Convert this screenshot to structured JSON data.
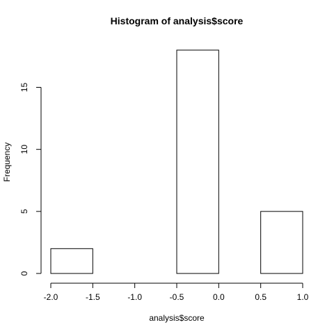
{
  "chart_data": {
    "type": "bar",
    "title": "Histogram of analysis$score",
    "xlabel": "analysis$score",
    "ylabel": "Frequency",
    "bins": [
      {
        "start": -2.0,
        "end": -1.5,
        "count": 2
      },
      {
        "start": -1.5,
        "end": -1.0,
        "count": 0
      },
      {
        "start": -1.0,
        "end": -0.5,
        "count": 0
      },
      {
        "start": -0.5,
        "end": 0.0,
        "count": 18
      },
      {
        "start": 0.0,
        "end": 0.5,
        "count": 0
      },
      {
        "start": 0.5,
        "end": 1.0,
        "count": 5
      }
    ],
    "xlim": [
      -2.0,
      1.0
    ],
    "ylim": [
      0,
      18
    ],
    "x_ticks": [
      "-2.0",
      "-1.5",
      "-1.0",
      "-0.5",
      "0.0",
      "0.5",
      "1.0"
    ],
    "y_ticks": [
      "0",
      "5",
      "10",
      "15"
    ],
    "grid": false,
    "bar_fill": "#ffffff",
    "bar_stroke": "#000000"
  }
}
